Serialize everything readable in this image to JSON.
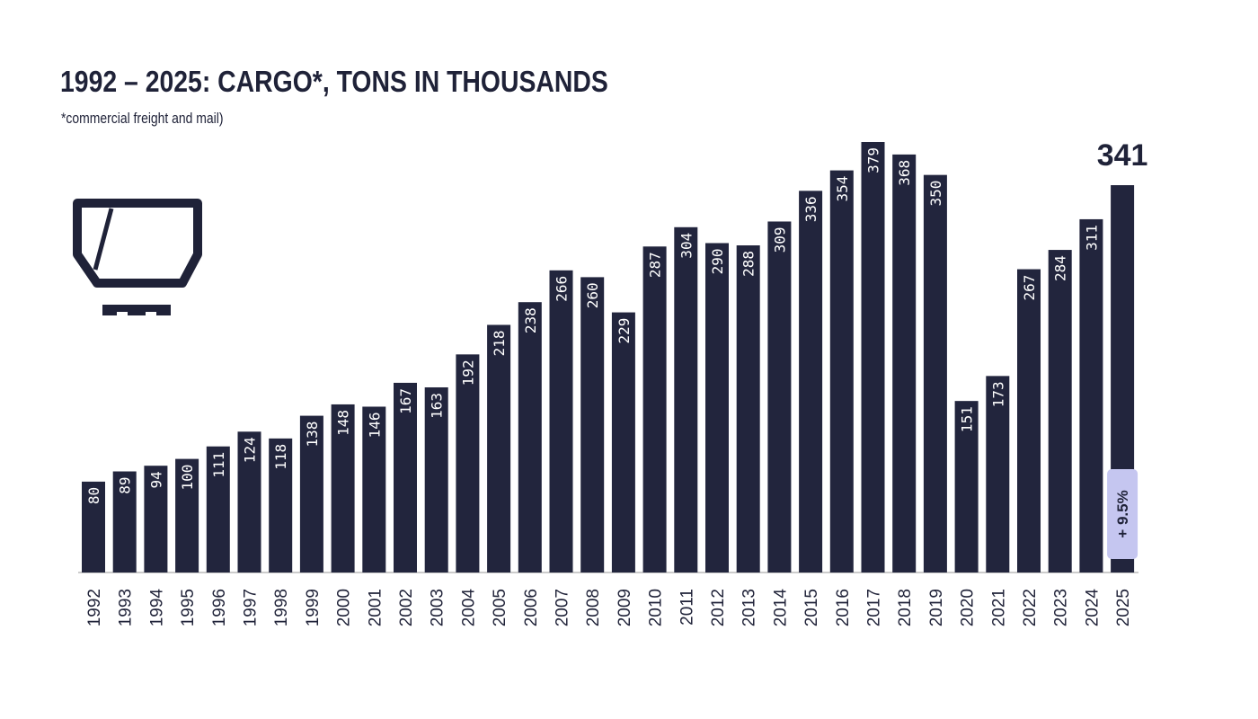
{
  "chart_data": {
    "type": "bar",
    "title": "1992 – 2025: CARGO*, TONS IN THOUSANDS",
    "subtitle": "*commercial freight and mail)",
    "xlabel": "",
    "ylabel": "",
    "categories": [
      "1992",
      "1993",
      "1994",
      "1995",
      "1996",
      "1997",
      "1998",
      "1999",
      "2000",
      "2001",
      "2002",
      "2003",
      "2004",
      "2005",
      "2006",
      "2007",
      "2008",
      "2009",
      "2010",
      "2011",
      "2012",
      "2013",
      "2014",
      "2015",
      "2016",
      "2017",
      "2018",
      "2019",
      "2020",
      "2021",
      "2022",
      "2023",
      "2024",
      "2025"
    ],
    "values": [
      80,
      89,
      94,
      100,
      111,
      124,
      118,
      138,
      148,
      146,
      167,
      163,
      192,
      218,
      238,
      266,
      260,
      229,
      287,
      304,
      290,
      288,
      309,
      336,
      354,
      379,
      368,
      350,
      151,
      173,
      267,
      284,
      311,
      341
    ],
    "ylim": [
      0,
      379
    ],
    "grid": false,
    "highlight": {
      "category": "2025",
      "value_label": "341",
      "change_label": "+ 9.5%"
    },
    "icon": "cargo-container-icon",
    "colors": {
      "bar": "#22253d",
      "label": "#ffffff",
      "badge": "#c5c6f0",
      "text": "#1f2238"
    }
  }
}
